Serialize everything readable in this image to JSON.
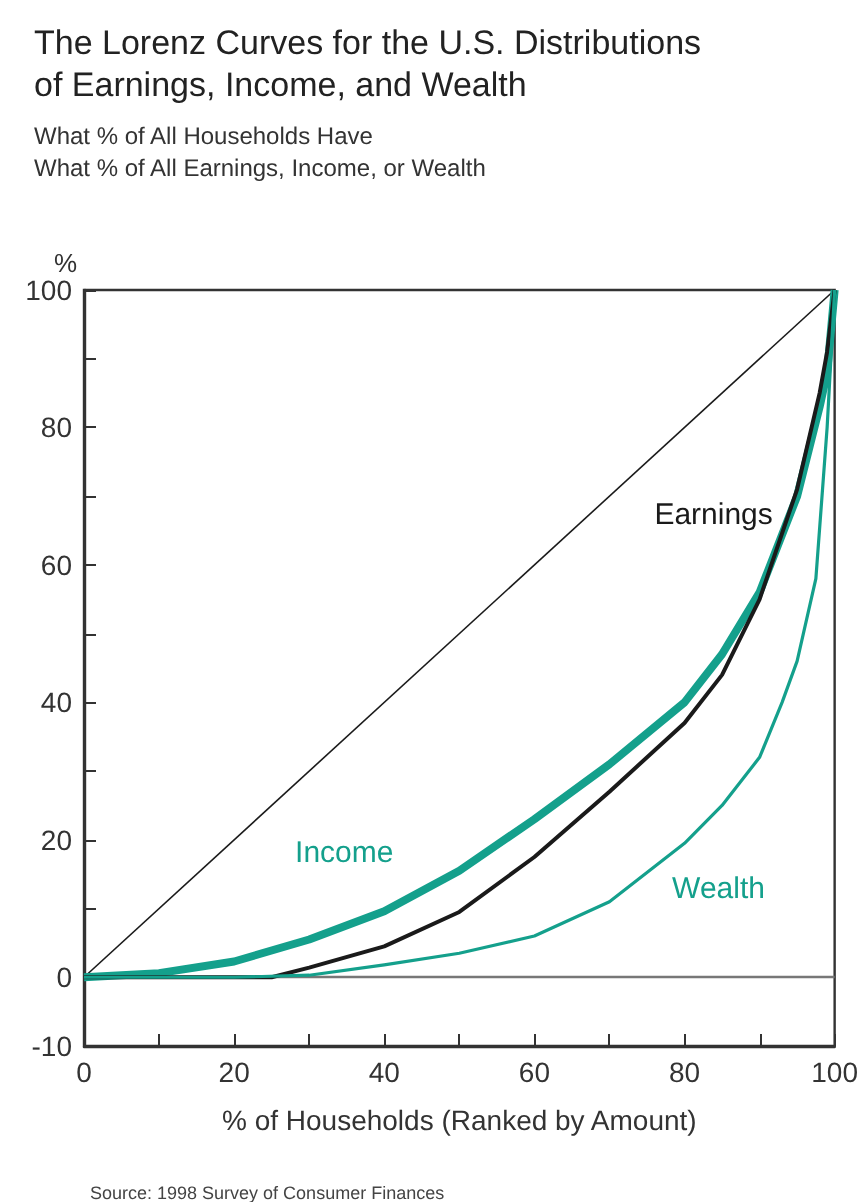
{
  "chart_data": {
    "type": "line",
    "title": "The Lorenz Curves for the U.S. Distributions\nof Earnings, Income, and Wealth",
    "subtitle": "What % of All Households Have\nWhat % of All Earnings, Income, or Wealth",
    "xlabel": "% of Households (Ranked by Amount)",
    "ylabel": "%",
    "annotations": [
      "Source: 1998 Survey of Consumer Finances"
    ],
    "marker": "none",
    "line_style": "solid",
    "grid": false,
    "legend": false,
    "xlim": [
      0,
      100
    ],
    "xticks": [
      0,
      {
        "value": 10,
        "label": null
      },
      20,
      {
        "value": 30,
        "label": null
      },
      40,
      {
        "value": 50,
        "label": null
      },
      60,
      {
        "value": 70,
        "label": null
      },
      80,
      {
        "value": 90,
        "label": null
      },
      100
    ],
    "ylim": [
      -10,
      100
    ],
    "yticks": [
      -10,
      0,
      {
        "value": 10,
        "label": null
      },
      20,
      {
        "value": 30,
        "label": null
      },
      40,
      {
        "value": 50,
        "label": null
      },
      60,
      {
        "value": 70,
        "label": null
      },
      80,
      {
        "value": 90,
        "label": null
      },
      100
    ],
    "ref_lines": [
      {
        "axis": "y",
        "value": 0,
        "label": null,
        "color": "#777777"
      }
    ],
    "series": [
      {
        "color": "#1a1a1a",
        "x": [
          0,
          100
        ],
        "values": [
          0,
          100
        ]
      },
      {
        "name": "Income",
        "color": "#14a08c",
        "x": [
          0,
          10,
          20,
          30,
          40,
          50,
          60,
          70,
          80,
          85,
          90,
          95,
          98,
          99,
          100
        ],
        "values": [
          0,
          0.6,
          2.3,
          5.5,
          9.6,
          15.5,
          23,
          31,
          40,
          47,
          56,
          70,
          83,
          88,
          100
        ]
      },
      {
        "name": "Earnings",
        "color": "#1a1a1a",
        "x": [
          0,
          20,
          25,
          30,
          40,
          50,
          60,
          70,
          80,
          85,
          90,
          95,
          98,
          99,
          100
        ],
        "values": [
          0,
          0,
          0,
          1.4,
          4.5,
          9.5,
          17.5,
          27,
          37,
          44,
          55,
          71,
          85,
          91,
          100
        ]
      },
      {
        "name": "Wealth",
        "color": "#14a08c",
        "x": [
          0,
          20,
          30,
          40,
          50,
          60,
          70,
          80,
          85,
          90,
          93,
          95,
          97.5,
          99,
          100
        ],
        "values": [
          0,
          0,
          0.3,
          1.8,
          3.5,
          6,
          11,
          19.5,
          25,
          32,
          40,
          46,
          58,
          80,
          100
        ]
      }
    ]
  }
}
